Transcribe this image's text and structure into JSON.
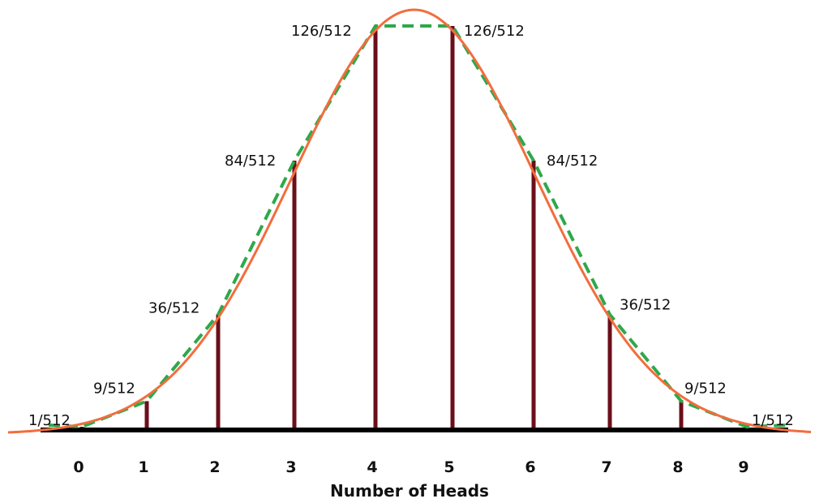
{
  "chart_data": {
    "type": "bar",
    "categories": [
      "0",
      "1",
      "2",
      "3",
      "4",
      "5",
      "6",
      "7",
      "8",
      "9"
    ],
    "values": [
      1,
      9,
      36,
      84,
      126,
      126,
      84,
      36,
      9,
      1
    ],
    "denominator": 512,
    "data_labels": [
      "1/512",
      "9/512",
      "36/512",
      "84/512",
      "126/512",
      "126/512",
      "84/512",
      "36/512",
      "9/512",
      "1/512"
    ],
    "title": "",
    "xlabel": "Number of Heads",
    "ylabel": "",
    "ylim": [
      0,
      126
    ],
    "grid": false,
    "overlays": [
      {
        "kind": "smooth-curve",
        "style": "solid",
        "color": "#f26d3d"
      },
      {
        "kind": "polyline-through-bar-tops",
        "style": "dashed",
        "color": "#2ea84a"
      }
    ],
    "colors": {
      "bars": "#6b0f1a",
      "axis": "#000000",
      "curve": "#f26d3d",
      "dashed": "#2ea84a"
    }
  }
}
